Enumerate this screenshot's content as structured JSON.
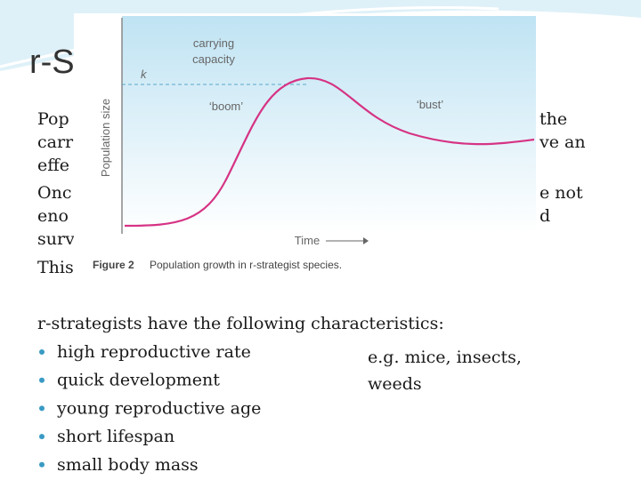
{
  "title": "r-S",
  "body_left": [
    "Pop",
    "carr",
    "effe",
    "Onc",
    "eno",
    "surv",
    "This"
  ],
  "body_right": [
    "the",
    "ve an",
    "e not",
    "d"
  ],
  "figure": {
    "y_label": "Population size",
    "k_label": "k",
    "carrying_capacity": [
      "carrying",
      "capacity"
    ],
    "boom": "‘boom’",
    "bust": "‘bust’",
    "x_label": "Time",
    "caption_number": "Figure 2",
    "caption_text": "Population growth in r-strategist species."
  },
  "list": {
    "heading": "r-strategists have the following characteristics:",
    "items": [
      "high reproductive rate",
      "quick development",
      "young reproductive age",
      "short lifespan",
      "small body mass"
    ],
    "example": [
      "e.g. mice, insects,",
      "weeds"
    ]
  }
}
